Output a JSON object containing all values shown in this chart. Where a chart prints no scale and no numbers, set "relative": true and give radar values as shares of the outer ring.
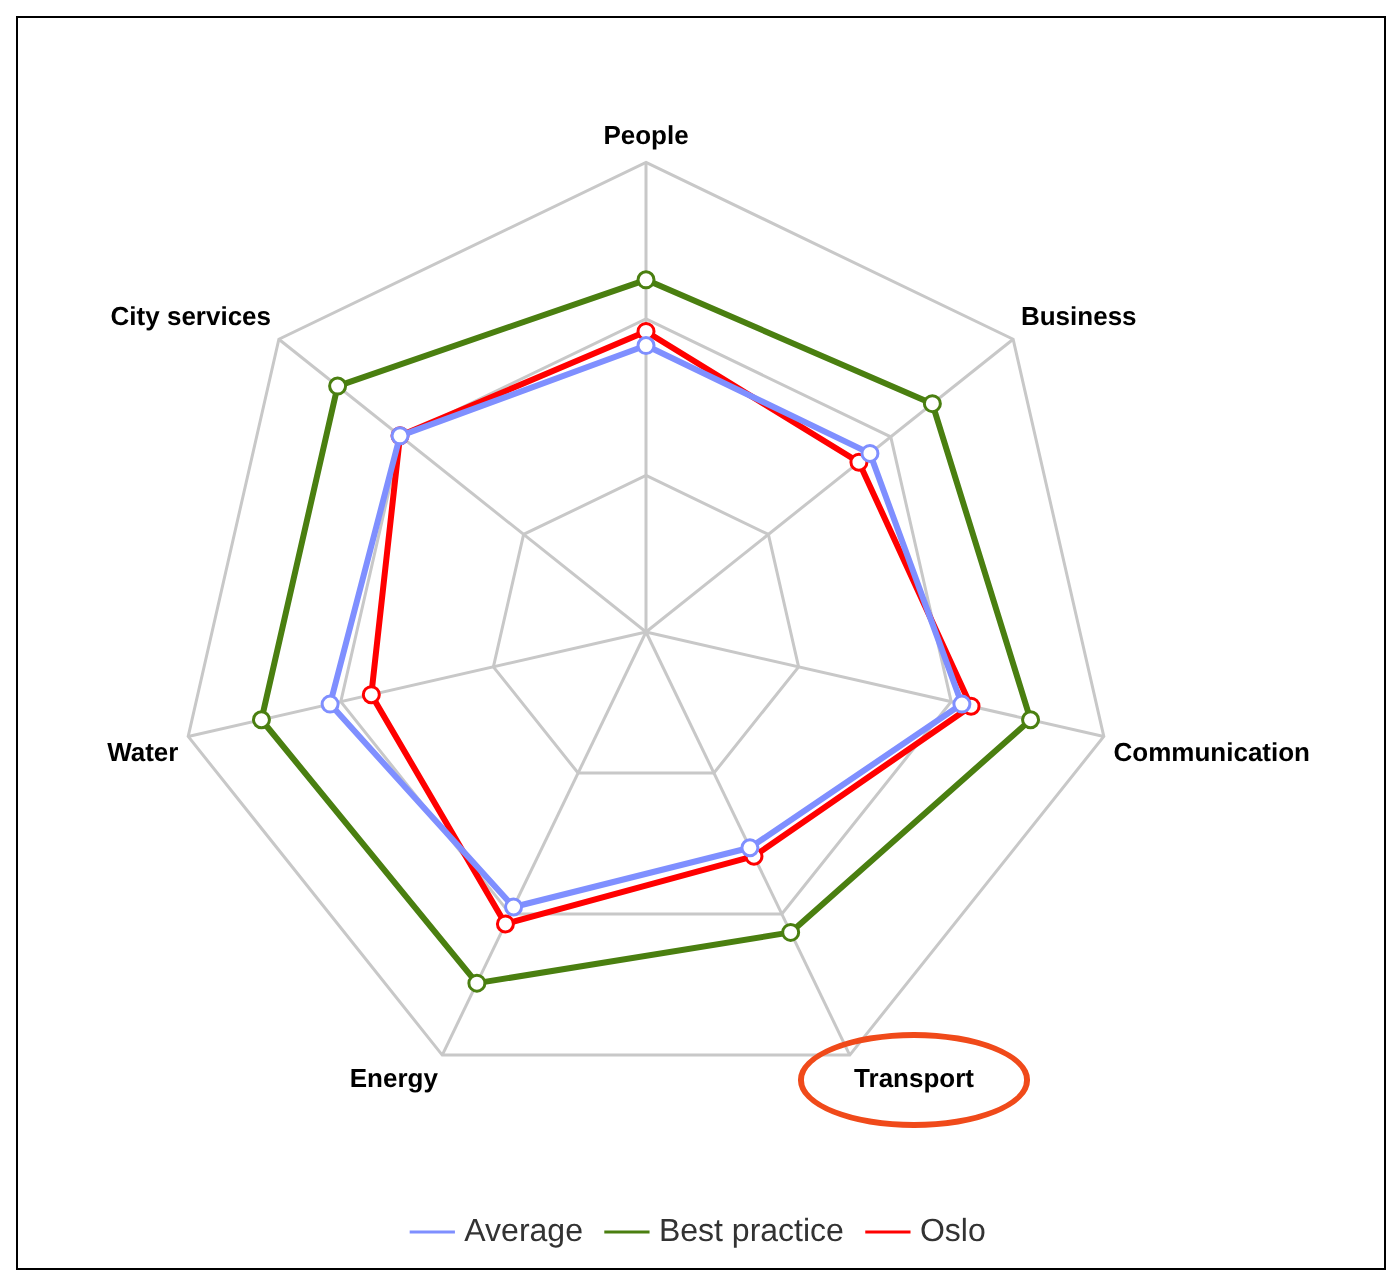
{
  "chart_data": {
    "type": "radar",
    "relative": true,
    "categories": [
      "People",
      "Business",
      "Communication",
      "Transport",
      "Energy",
      "Water",
      "City services"
    ],
    "series": [
      {
        "name": "Average",
        "color": "#7f8fff",
        "values": [
          0.61,
          0.61,
          0.69,
          0.51,
          0.65,
          0.69,
          0.67
        ]
      },
      {
        "name": "Best practice",
        "color": "#4a7f10",
        "values": [
          0.75,
          0.78,
          0.84,
          0.71,
          0.83,
          0.84,
          0.84
        ]
      },
      {
        "name": "Oslo",
        "color": "#ff0000",
        "values": [
          0.64,
          0.58,
          0.71,
          0.53,
          0.69,
          0.6,
          0.67
        ]
      }
    ],
    "legend": "bottom",
    "marker": "circle",
    "grid": true
  }
}
